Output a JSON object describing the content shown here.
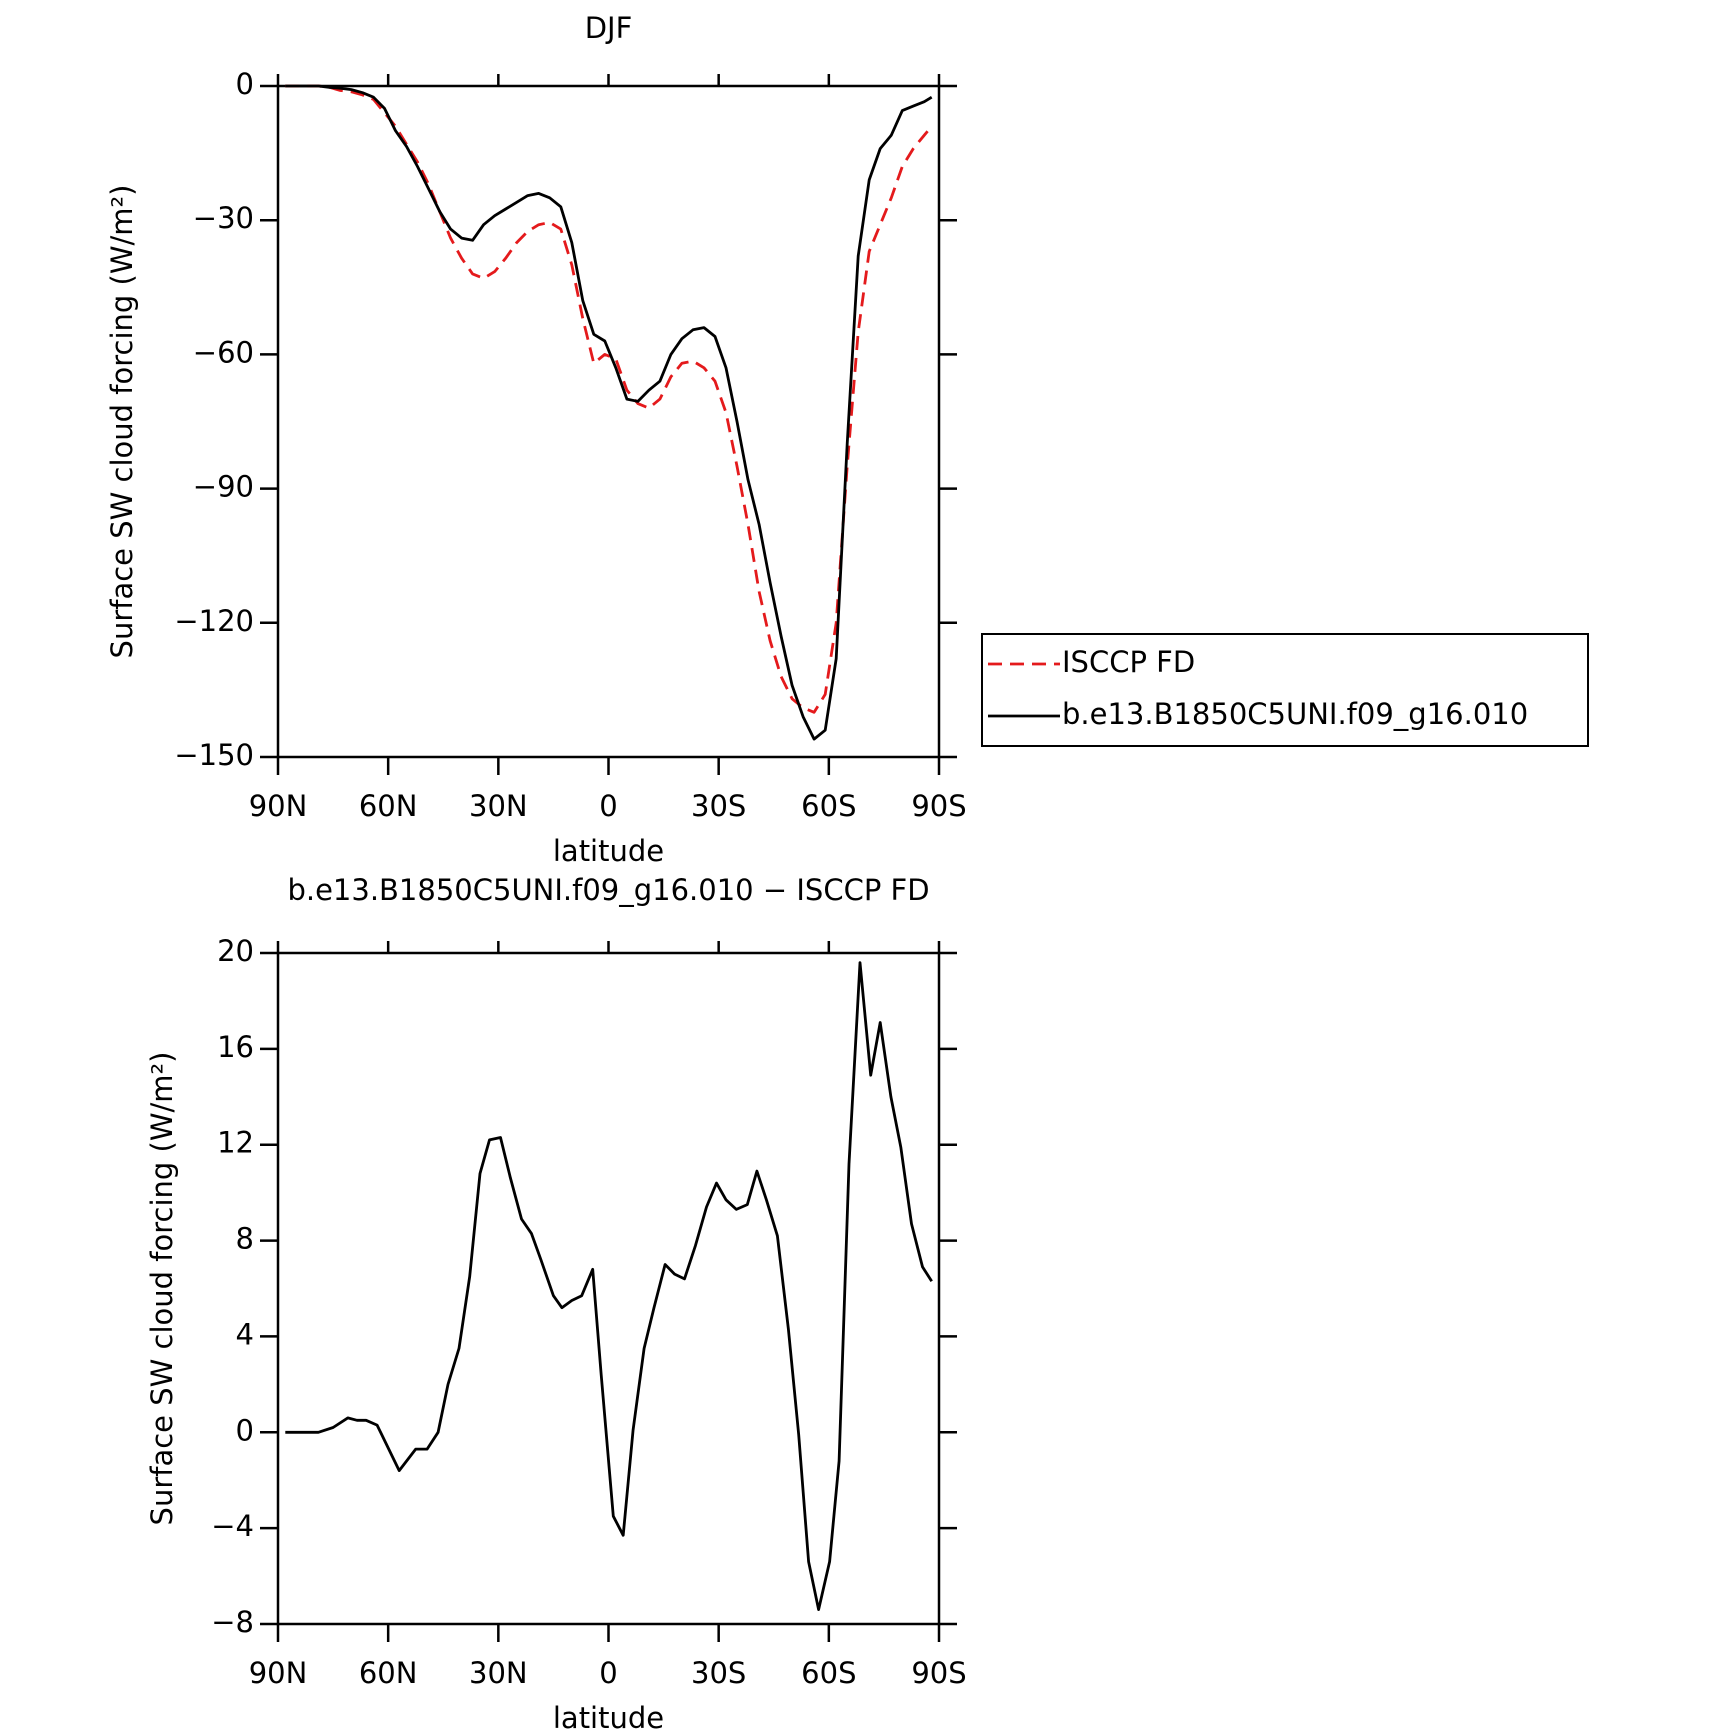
{
  "chart_data": [
    {
      "type": "line",
      "title": "DJF",
      "xlabel": "latitude",
      "ylabel": "Surface SW cloud forcing (W/m²)",
      "x": [
        88,
        85,
        82,
        79,
        76,
        73,
        70,
        67,
        64,
        61,
        58,
        55,
        52,
        49,
        46,
        43,
        40,
        37,
        34,
        31,
        28,
        25,
        22,
        19,
        16,
        13,
        10,
        7,
        4,
        1,
        -2,
        -5,
        -8,
        -11,
        -14,
        -17,
        -20,
        -23,
        -26,
        -29,
        -32,
        -35,
        -38,
        -41,
        -44,
        -47,
        -50,
        -53,
        -56,
        -59,
        -62,
        -65,
        -68,
        -71,
        -74,
        -77,
        -80,
        -83,
        -86,
        -88
      ],
      "series": [
        {
          "name": "ISCCP FD",
          "color": "#e41a1c",
          "style": "dashed",
          "values": [
            0,
            0,
            0,
            0,
            -0.3,
            -1,
            -1.3,
            -2,
            -3,
            -6,
            -9,
            -13,
            -17,
            -22,
            -28,
            -34,
            -38.5,
            -42,
            -43,
            -41.5,
            -38.5,
            -35,
            -32.5,
            -31,
            -30.5,
            -32,
            -40,
            -52,
            -62,
            -60,
            -61,
            -68,
            -71,
            -72,
            -70,
            -65,
            -62,
            -61.5,
            -63,
            -66,
            -73,
            -85,
            -98,
            -113,
            -124,
            -132,
            -137,
            -139,
            -140,
            -136,
            -120,
            -85,
            -55,
            -37,
            -31,
            -25,
            -18,
            -14,
            -11,
            -9
          ]
        },
        {
          "name": "b.e13.B1850C5UNI.f09_g16.010",
          "color": "#000000",
          "style": "solid",
          "values": [
            0,
            0,
            0,
            0,
            -0.3,
            -0.5,
            -0.8,
            -1.5,
            -2.5,
            -5,
            -10,
            -13.5,
            -18,
            -23,
            -28,
            -32,
            -34,
            -34.5,
            -31,
            -29,
            -27.5,
            -26,
            -24.5,
            -24,
            -25,
            -27,
            -35,
            -48,
            -55.5,
            -57,
            -63,
            -70,
            -70.5,
            -68,
            -66,
            -60,
            -56.5,
            -54.5,
            -54,
            -56,
            -63,
            -75,
            -88,
            -98,
            -111,
            -123,
            -134,
            -141,
            -146,
            -144,
            -128,
            -80,
            -38,
            -21,
            -14,
            -11,
            -5.5,
            -4.5,
            -3.5,
            -2.5
          ]
        }
      ],
      "xlim": [
        90,
        -90
      ],
      "xticks": [
        {
          "value": 90,
          "label": "90N"
        },
        {
          "value": 60,
          "label": "60N"
        },
        {
          "value": 30,
          "label": "30N"
        },
        0,
        {
          "value": -30,
          "label": "30S"
        },
        {
          "value": -60,
          "label": "60S"
        },
        {
          "value": -90,
          "label": "90S"
        }
      ],
      "ylim": [
        -150,
        0
      ],
      "yticks": [
        0,
        {
          "value": -30,
          "label": "−30"
        },
        {
          "value": -60,
          "label": "−60"
        },
        {
          "value": -90,
          "label": "−90"
        },
        {
          "value": -120,
          "label": "−120"
        },
        {
          "value": -150,
          "label": "−150"
        }
      ],
      "legend": "outside right"
    },
    {
      "type": "line",
      "title": "b.e13.B1850C5UNI.f09_g16.010 − ISCCP FD",
      "xlabel": "latitude",
      "ylabel": "Surface SW cloud forcing (W/m²)",
      "x": [
        88,
        79,
        75,
        71,
        68.5,
        66,
        63,
        57,
        52.5,
        49.4,
        46.4,
        43.7,
        40.7,
        37.8,
        35,
        32.4,
        29.4,
        26.7,
        23.7,
        21,
        18.4,
        15,
        12.7,
        10,
        7.3,
        4.3,
        2,
        -1.3,
        -4,
        -6.7,
        -9.7,
        -12.4,
        -15.4,
        -18,
        -20.7,
        -23.7,
        -26.7,
        -29.4,
        -32,
        -34.8,
        -37.8,
        -40.4,
        -43,
        -46,
        -49,
        -51.8,
        -54.5,
        -57.2,
        -60.2,
        -62.8,
        -65.5,
        -68.5,
        -71.4,
        -74,
        -76.9,
        -79.6,
        -82.5,
        -85.5,
        -88
      ],
      "values": [
        0,
        0,
        0.2,
        0.6,
        0.5,
        0.5,
        0.3,
        -1.6,
        -0.7,
        -0.7,
        0,
        2,
        3.5,
        6.5,
        10.8,
        12.2,
        12.3,
        10.6,
        8.9,
        8.3,
        7.2,
        5.7,
        5.2,
        5.5,
        5.7,
        6.8,
        2.4,
        -3.5,
        -4.3,
        0.1,
        3.5,
        5.2,
        7,
        6.6,
        6.4,
        7.8,
        9.4,
        10.4,
        9.7,
        9.3,
        9.5,
        10.9,
        9.7,
        8.2,
        4.3,
        -0.1,
        -5.4,
        -7.4,
        -5.4,
        -1.2,
        11.2,
        19.6,
        14.9,
        17.1,
        14,
        11.9,
        8.7,
        6.9,
        6.3
      ],
      "color": "#000000",
      "xlim": [
        90,
        -90
      ],
      "xticks": [
        {
          "value": 90,
          "label": "90N"
        },
        {
          "value": 60,
          "label": "60N"
        },
        {
          "value": 30,
          "label": "30N"
        },
        0,
        {
          "value": -30,
          "label": "30S"
        },
        {
          "value": -60,
          "label": "60S"
        },
        {
          "value": -90,
          "label": "90S"
        }
      ],
      "ylim": [
        -8,
        20
      ],
      "yticks": [
        20,
        16,
        12,
        8,
        4,
        0,
        {
          "value": -4,
          "label": "−4"
        },
        {
          "value": -8,
          "label": "−8"
        }
      ]
    }
  ]
}
